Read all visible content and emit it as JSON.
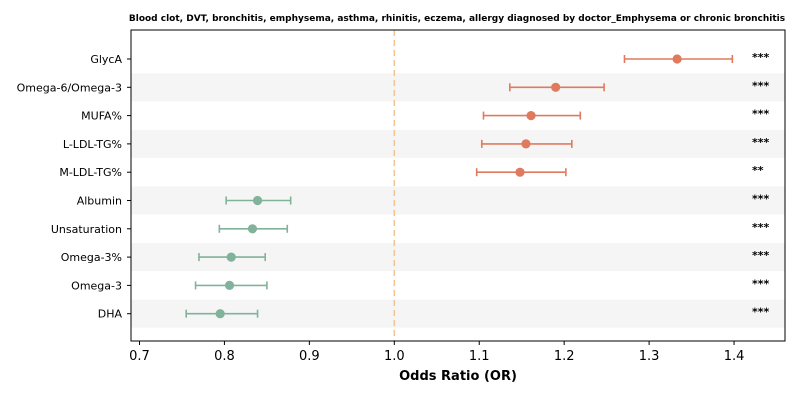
{
  "chart_data": {
    "type": "forest",
    "title": "Blood clot, DVT, bronchitis, emphysema, asthma, rhinitis, eczema, allergy diagnosed by doctor_Emphysema or chronic bronchitis",
    "xlabel": "Odds Ratio (OR)",
    "ylabel": "",
    "xlim": [
      0.69,
      1.46
    ],
    "x_ticks": [
      0.7,
      0.8,
      0.9,
      1.0,
      1.1,
      1.2,
      1.3,
      1.4
    ],
    "x_tick_labels": [
      "0.7",
      "0.8",
      "0.9",
      "1.0",
      "1.1",
      "1.2",
      "1.3",
      "1.4"
    ],
    "reference_line": 1.0,
    "reference_line_style": "dashed",
    "row_shading": "alternating",
    "colors": {
      "positive": "#e07a5f",
      "negative": "#81b29a",
      "reference": "#f4c48e",
      "row_band": "#f5f5f5"
    },
    "rows": [
      {
        "label": "GlycA",
        "or": 1.333,
        "ci_low": 1.271,
        "ci_high": 1.398,
        "significance": "***"
      },
      {
        "label": "Omega-6/Omega-3",
        "or": 1.19,
        "ci_low": 1.136,
        "ci_high": 1.247,
        "significance": "***"
      },
      {
        "label": "MUFA%",
        "or": 1.161,
        "ci_low": 1.105,
        "ci_high": 1.219,
        "significance": "***"
      },
      {
        "label": "L-LDL-TG%",
        "or": 1.155,
        "ci_low": 1.103,
        "ci_high": 1.209,
        "significance": "***"
      },
      {
        "label": "M-LDL-TG%",
        "or": 1.148,
        "ci_low": 1.097,
        "ci_high": 1.202,
        "significance": "**"
      },
      {
        "label": "Albumin",
        "or": 0.839,
        "ci_low": 0.802,
        "ci_high": 0.878,
        "significance": "***"
      },
      {
        "label": "Unsaturation",
        "or": 0.833,
        "ci_low": 0.794,
        "ci_high": 0.874,
        "significance": "***"
      },
      {
        "label": "Omega-3%",
        "or": 0.808,
        "ci_low": 0.77,
        "ci_high": 0.848,
        "significance": "***"
      },
      {
        "label": "Omega-3",
        "or": 0.806,
        "ci_low": 0.766,
        "ci_high": 0.85,
        "significance": "***"
      },
      {
        "label": "DHA",
        "or": 0.795,
        "ci_low": 0.755,
        "ci_high": 0.839,
        "significance": "***"
      }
    ]
  }
}
